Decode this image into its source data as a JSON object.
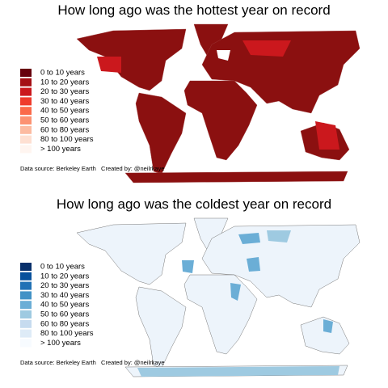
{
  "maps": [
    {
      "title": "How long ago was the hottest year on record",
      "legend": [
        {
          "label": "0 to 10 years",
          "color": "#67000d"
        },
        {
          "label": "10 to 20 years",
          "color": "#a50f15"
        },
        {
          "label": "20 to 30 years",
          "color": "#cb181d"
        },
        {
          "label": "30 to 40 years",
          "color": "#ef3b2c"
        },
        {
          "label": "40 to 50 years",
          "color": "#fb6a4a"
        },
        {
          "label": "50 to 60 years",
          "color": "#fc9272"
        },
        {
          "label": "60 to 80 years",
          "color": "#fcbba1"
        },
        {
          "label": "80 to 100 years",
          "color": "#fee0d2"
        },
        {
          "label": "> 100 years",
          "color": "#fff5f0"
        }
      ],
      "source": "Data source: Berkeley Earth   Created by: @neilrkaye"
    },
    {
      "title": "How long ago was the coldest year on record",
      "legend": [
        {
          "label": "0 to 10 years",
          "color": "#08306b"
        },
        {
          "label": "10 to 20 years",
          "color": "#08519c"
        },
        {
          "label": "20 to 30 years",
          "color": "#2171b5"
        },
        {
          "label": "30 to 40 years",
          "color": "#4292c6"
        },
        {
          "label": "40 to 50 years",
          "color": "#6baed6"
        },
        {
          "label": "50 to 60 years",
          "color": "#9ecae1"
        },
        {
          "label": "60 to 80 years",
          "color": "#c6dbef"
        },
        {
          "label": "80 to 100 years",
          "color": "#deebf7"
        },
        {
          "label": "> 100 years",
          "color": "#f7fbff"
        }
      ],
      "source": "Data source: Berkeley Earth   Created by: @neilrkaye"
    }
  ]
}
